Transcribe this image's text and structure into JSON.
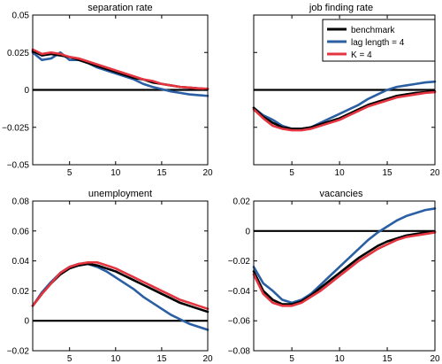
{
  "colors": {
    "benchmark": "#000000",
    "lag": "#2b5fa3",
    "k": "#e3343f",
    "frame": "#000000",
    "background": "#ffffff"
  },
  "chart_data": [
    {
      "type": "line",
      "title": "separation rate",
      "xlim": [
        1,
        20
      ],
      "ylim": [
        -0.05,
        0.05
      ],
      "xticks": [
        5,
        10,
        15,
        20
      ],
      "xtick_labels": [
        "5",
        "10",
        "15",
        "20"
      ],
      "yticks": [
        -0.05,
        -0.025,
        0,
        0.025,
        0.05
      ],
      "ytick_labels": [
        "−0.05",
        "−0.025",
        "0",
        "0.025",
        "0.05"
      ],
      "zero_line": true,
      "x": [
        1,
        2,
        3,
        4,
        5,
        6,
        7,
        8,
        9,
        10,
        11,
        12,
        13,
        14,
        15,
        16,
        17,
        18,
        19,
        20
      ],
      "series": [
        {
          "key": "benchmark",
          "values": [
            0.026,
            0.023,
            0.024,
            0.023,
            0.022,
            0.02,
            0.018,
            0.016,
            0.014,
            0.012,
            0.01,
            0.008,
            0.007,
            0.005,
            0.004,
            0.003,
            0.002,
            0.0015,
            0.001,
            0.0005
          ]
        },
        {
          "key": "lag",
          "values": [
            0.025,
            0.02,
            0.021,
            0.025,
            0.02,
            0.02,
            0.018,
            0.015,
            0.013,
            0.011,
            0.009,
            0.007,
            0.004,
            0.002,
            0.0005,
            -0.001,
            -0.002,
            -0.003,
            -0.0035,
            -0.004
          ]
        },
        {
          "key": "k",
          "values": [
            0.027,
            0.024,
            0.025,
            0.024,
            0.022,
            0.021,
            0.019,
            0.017,
            0.015,
            0.013,
            0.011,
            0.009,
            0.007,
            0.006,
            0.004,
            0.003,
            0.002,
            0.0015,
            0.001,
            0.0008
          ]
        }
      ]
    },
    {
      "type": "line",
      "title": "job finding rate",
      "xlim": [
        1,
        20
      ],
      "ylim": [
        -0.05,
        0.05
      ],
      "xticks": [
        5,
        10,
        15,
        20
      ],
      "xtick_labels": [
        "5",
        "10",
        "15",
        "20"
      ],
      "yticks": [
        -0.05,
        -0.025,
        0,
        0.025,
        0.05
      ],
      "ytick_labels": [
        "",
        "",
        "",
        "",
        ""
      ],
      "zero_line": true,
      "legend": {
        "position": "top-right",
        "entries": [
          {
            "key": "benchmark",
            "label": "benchmark"
          },
          {
            "key": "lag",
            "label": "lag length = 4"
          },
          {
            "key": "k",
            "label": "K = 4"
          }
        ]
      },
      "x": [
        1,
        2,
        3,
        4,
        5,
        6,
        7,
        8,
        9,
        10,
        11,
        12,
        13,
        14,
        15,
        16,
        17,
        18,
        19,
        20
      ],
      "series": [
        {
          "key": "benchmark",
          "values": [
            -0.012,
            -0.018,
            -0.022,
            -0.025,
            -0.026,
            -0.026,
            -0.025,
            -0.023,
            -0.021,
            -0.019,
            -0.016,
            -0.013,
            -0.01,
            -0.008,
            -0.006,
            -0.004,
            -0.003,
            -0.002,
            -0.0015,
            -0.001
          ]
        },
        {
          "key": "lag",
          "values": [
            -0.012,
            -0.017,
            -0.02,
            -0.024,
            -0.026,
            -0.026,
            -0.025,
            -0.022,
            -0.019,
            -0.016,
            -0.013,
            -0.01,
            -0.006,
            -0.003,
            0.0,
            0.002,
            0.003,
            0.004,
            0.005,
            0.0055
          ]
        },
        {
          "key": "k",
          "values": [
            -0.013,
            -0.019,
            -0.024,
            -0.026,
            -0.027,
            -0.027,
            -0.026,
            -0.024,
            -0.022,
            -0.02,
            -0.017,
            -0.014,
            -0.011,
            -0.009,
            -0.007,
            -0.005,
            -0.004,
            -0.003,
            -0.002,
            -0.0015
          ]
        }
      ]
    },
    {
      "type": "line",
      "title": "unemployment",
      "xlim": [
        1,
        20
      ],
      "ylim": [
        -0.02,
        0.08
      ],
      "xticks": [
        5,
        10,
        15,
        20
      ],
      "xtick_labels": [
        "5",
        "10",
        "15",
        "20"
      ],
      "yticks": [
        -0.02,
        0,
        0.02,
        0.04,
        0.06,
        0.08
      ],
      "ytick_labels": [
        "−0.02",
        "0",
        "0.02",
        "0.04",
        "0.06",
        "0.08"
      ],
      "zero_line": true,
      "x": [
        1,
        2,
        3,
        4,
        5,
        6,
        7,
        8,
        9,
        10,
        11,
        12,
        13,
        14,
        15,
        16,
        17,
        18,
        19,
        20
      ],
      "series": [
        {
          "key": "benchmark",
          "values": [
            0.01,
            0.018,
            0.025,
            0.031,
            0.035,
            0.037,
            0.038,
            0.037,
            0.035,
            0.033,
            0.03,
            0.027,
            0.024,
            0.021,
            0.018,
            0.015,
            0.012,
            0.01,
            0.008,
            0.006
          ]
        },
        {
          "key": "lag",
          "values": [
            0.01,
            0.019,
            0.026,
            0.032,
            0.036,
            0.038,
            0.038,
            0.036,
            0.033,
            0.029,
            0.025,
            0.021,
            0.016,
            0.012,
            0.008,
            0.004,
            0.001,
            -0.002,
            -0.004,
            -0.006
          ]
        },
        {
          "key": "k",
          "values": [
            0.01,
            0.018,
            0.025,
            0.032,
            0.036,
            0.038,
            0.039,
            0.039,
            0.037,
            0.035,
            0.032,
            0.029,
            0.026,
            0.023,
            0.02,
            0.017,
            0.014,
            0.012,
            0.01,
            0.008
          ]
        }
      ]
    },
    {
      "type": "line",
      "title": "vacancies",
      "xlim": [
        1,
        20
      ],
      "ylim": [
        -0.08,
        0.02
      ],
      "xticks": [
        5,
        10,
        15,
        20
      ],
      "xtick_labels": [
        "5",
        "10",
        "15",
        "20"
      ],
      "yticks": [
        -0.08,
        -0.06,
        -0.04,
        -0.02,
        0,
        0.02
      ],
      "ytick_labels": [
        "−0.08",
        "−0.06",
        "−0.04",
        "−0.02",
        "0",
        "0.02"
      ],
      "zero_line": true,
      "x": [
        1,
        2,
        3,
        4,
        5,
        6,
        7,
        8,
        9,
        10,
        11,
        12,
        13,
        14,
        15,
        16,
        17,
        18,
        19,
        20
      ],
      "series": [
        {
          "key": "benchmark",
          "values": [
            -0.027,
            -0.04,
            -0.046,
            -0.049,
            -0.049,
            -0.047,
            -0.043,
            -0.038,
            -0.033,
            -0.028,
            -0.023,
            -0.018,
            -0.014,
            -0.01,
            -0.007,
            -0.005,
            -0.003,
            -0.002,
            -0.001,
            -0.0005
          ]
        },
        {
          "key": "lag",
          "values": [
            -0.024,
            -0.035,
            -0.04,
            -0.046,
            -0.048,
            -0.046,
            -0.042,
            -0.036,
            -0.03,
            -0.024,
            -0.018,
            -0.012,
            -0.006,
            -0.001,
            0.003,
            0.007,
            0.01,
            0.012,
            0.014,
            0.015
          ]
        },
        {
          "key": "k",
          "values": [
            -0.029,
            -0.042,
            -0.048,
            -0.05,
            -0.05,
            -0.048,
            -0.044,
            -0.04,
            -0.035,
            -0.03,
            -0.025,
            -0.02,
            -0.016,
            -0.012,
            -0.009,
            -0.006,
            -0.004,
            -0.003,
            -0.002,
            -0.001
          ]
        }
      ]
    }
  ]
}
